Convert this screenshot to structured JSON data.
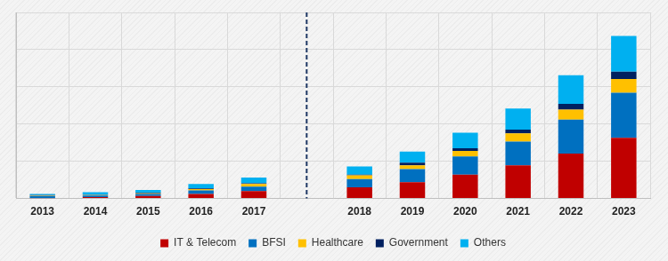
{
  "chart_data": {
    "type": "bar",
    "stacked": true,
    "grid": true,
    "legend": "bottom",
    "tick_labels": "x",
    "categories": [
      "2013",
      "2014",
      "2015",
      "2016",
      "2017",
      null,
      "2018",
      "2019",
      "2020",
      "2021",
      "2022",
      "2023"
    ],
    "ylim": [
      0,
      5
    ],
    "yticks": [
      0,
      1,
      2,
      3,
      4,
      5
    ],
    "series": [
      {
        "name": "IT & Telecom",
        "color": "#c00000",
        "values": [
          0.01,
          0.04,
          0.07,
          0.12,
          0.2,
          null,
          0.3,
          0.44,
          0.64,
          0.89,
          1.21,
          1.63
        ]
      },
      {
        "name": "BFSI",
        "color": "#0070c0",
        "values": [
          0.06,
          0.04,
          0.05,
          0.1,
          0.12,
          null,
          0.22,
          0.35,
          0.49,
          0.64,
          0.91,
          1.21
        ]
      },
      {
        "name": "Healthcare",
        "color": "#ffc000",
        "values": [
          0.01,
          0.01,
          0.02,
          0.03,
          0.07,
          null,
          0.1,
          0.1,
          0.15,
          0.22,
          0.27,
          0.37
        ]
      },
      {
        "name": "Government",
        "color": "#002060",
        "values": [
          0.01,
          0.01,
          0.02,
          0.02,
          0.02,
          null,
          0.02,
          0.07,
          0.07,
          0.1,
          0.15,
          0.2
        ]
      },
      {
        "name": "Others",
        "color": "#00b0f0",
        "values": [
          0.03,
          0.07,
          0.07,
          0.12,
          0.15,
          null,
          0.22,
          0.3,
          0.42,
          0.57,
          0.77,
          0.96
        ]
      }
    ]
  }
}
